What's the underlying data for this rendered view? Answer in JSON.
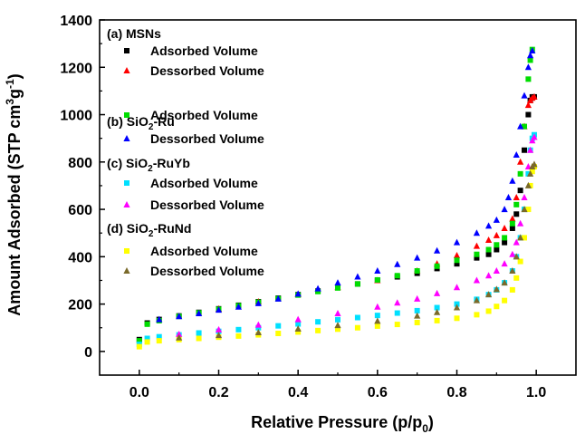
{
  "chart_data": {
    "type": "scatter",
    "xlabel_main": "Relative Pressure (p/p",
    "xlabel_sub": "0",
    "xlabel_end": ")",
    "ylabel_main": "Amount Adsorbed (STP cm",
    "ylabel_sup1": "3",
    "ylabel_mid": "g",
    "ylabel_sup2": "-1",
    "ylabel_end": ")",
    "xlim": [
      -0.1,
      1.1
    ],
    "ylim": [
      -100,
      1400
    ],
    "x_ticks": [
      {
        "value": 0.0,
        "label": "0.0"
      },
      {
        "value": 0.2,
        "label": "0.2"
      },
      {
        "value": 0.4,
        "label": "0.4"
      },
      {
        "value": 0.6,
        "label": "0.6"
      },
      {
        "value": 0.8,
        "label": "0.8"
      },
      {
        "value": 1.0,
        "label": "1.0"
      }
    ],
    "y_ticks": [
      {
        "value": 0,
        "label": "0"
      },
      {
        "value": 200,
        "label": "200"
      },
      {
        "value": 400,
        "label": "400"
      },
      {
        "value": 600,
        "label": "600"
      },
      {
        "value": 800,
        "label": "800"
      },
      {
        "value": 1000,
        "label": "1000"
      },
      {
        "value": 1200,
        "label": "1200"
      },
      {
        "value": 1400,
        "label": "1400"
      }
    ],
    "legend_placement": "top-left",
    "legend_groups": [
      {
        "head": "(a) MSNs",
        "sub": "",
        "tail": ""
      },
      {
        "head": "(b) SiO",
        "sub": "2",
        "tail": "-Ru"
      },
      {
        "head": "(c) SiO",
        "sub": "2",
        "tail": "-RuYb"
      },
      {
        "head": "(d) SiO",
        "sub": "2",
        "tail": "-RuNd"
      }
    ],
    "series": [
      {
        "name": "Adsorbed Volume",
        "group": 0,
        "marker": "square",
        "color": "#000000",
        "x": [
          0.0,
          0.02,
          0.05,
          0.1,
          0.15,
          0.2,
          0.25,
          0.3,
          0.35,
          0.4,
          0.45,
          0.5,
          0.55,
          0.6,
          0.65,
          0.7,
          0.75,
          0.8,
          0.85,
          0.88,
          0.9,
          0.92,
          0.94,
          0.95,
          0.96,
          0.97,
          0.98,
          0.985,
          0.99,
          0.995
        ],
        "y": [
          50,
          120,
          135,
          150,
          165,
          180,
          195,
          210,
          225,
          240,
          255,
          270,
          285,
          300,
          315,
          330,
          350,
          370,
          395,
          410,
          430,
          460,
          520,
          580,
          680,
          850,
          1000,
          1060,
          1075,
          1075
        ]
      },
      {
        "name": "Dessorbed Volume",
        "group": 0,
        "marker": "triangle",
        "color": "#ff0000",
        "x": [
          0.995,
          0.99,
          0.985,
          0.98,
          0.97,
          0.96,
          0.95,
          0.94,
          0.92,
          0.9,
          0.88,
          0.85,
          0.8,
          0.75,
          0.7,
          0.6,
          0.5,
          0.4,
          0.3,
          0.2
        ],
        "y": [
          1075,
          1070,
          1060,
          1040,
          950,
          800,
          650,
          560,
          520,
          490,
          470,
          445,
          405,
          370,
          340,
          300,
          270,
          240,
          210,
          180
        ]
      },
      {
        "name": "Adsorbed Volume",
        "group": 1,
        "marker": "square",
        "color": "#00dd00",
        "x": [
          0.0,
          0.02,
          0.05,
          0.1,
          0.15,
          0.2,
          0.25,
          0.3,
          0.35,
          0.4,
          0.45,
          0.5,
          0.55,
          0.6,
          0.65,
          0.7,
          0.75,
          0.8,
          0.85,
          0.88,
          0.9,
          0.92,
          0.94,
          0.95,
          0.96,
          0.97,
          0.98,
          0.985,
          0.99
        ],
        "y": [
          45,
          115,
          130,
          148,
          163,
          178,
          193,
          208,
          223,
          238,
          253,
          268,
          285,
          302,
          320,
          340,
          360,
          385,
          410,
          430,
          450,
          480,
          540,
          620,
          750,
          950,
          1150,
          1230,
          1275
        ]
      },
      {
        "name": "Dessorbed Volume",
        "group": 1,
        "marker": "triangle",
        "color": "#0000ff",
        "x": [
          0.99,
          0.985,
          0.98,
          0.97,
          0.96,
          0.95,
          0.94,
          0.93,
          0.92,
          0.9,
          0.88,
          0.85,
          0.8,
          0.75,
          0.7,
          0.65,
          0.6,
          0.55,
          0.5,
          0.45,
          0.4,
          0.35,
          0.3,
          0.25,
          0.2,
          0.15,
          0.1,
          0.05
        ],
        "y": [
          1270,
          1250,
          1200,
          1080,
          950,
          830,
          720,
          650,
          600,
          555,
          530,
          500,
          460,
          425,
          395,
          368,
          340,
          315,
          290,
          265,
          243,
          222,
          203,
          188,
          175,
          160,
          148,
          135
        ]
      },
      {
        "name": "Adsorbed Volume",
        "group": 2,
        "marker": "square",
        "color": "#00e0ff",
        "x": [
          0.0,
          0.02,
          0.05,
          0.1,
          0.15,
          0.2,
          0.25,
          0.3,
          0.35,
          0.4,
          0.45,
          0.5,
          0.55,
          0.6,
          0.65,
          0.7,
          0.75,
          0.8,
          0.85,
          0.88,
          0.9,
          0.92,
          0.94,
          0.95,
          0.96,
          0.97,
          0.98,
          0.985,
          0.99,
          0.995
        ],
        "y": [
          30,
          55,
          62,
          70,
          78,
          85,
          92,
          100,
          108,
          116,
          125,
          134,
          143,
          152,
          162,
          172,
          185,
          200,
          220,
          240,
          260,
          290,
          340,
          400,
          480,
          600,
          750,
          850,
          900,
          915
        ]
      },
      {
        "name": "Dessorbed Volume",
        "group": 2,
        "marker": "triangle",
        "color": "#ff00ff",
        "x": [
          0.995,
          0.99,
          0.985,
          0.98,
          0.97,
          0.96,
          0.95,
          0.94,
          0.92,
          0.9,
          0.88,
          0.85,
          0.8,
          0.75,
          0.7,
          0.65,
          0.6,
          0.5,
          0.4,
          0.3,
          0.2,
          0.1
        ],
        "y": [
          905,
          890,
          850,
          780,
          650,
          540,
          460,
          410,
          370,
          340,
          320,
          300,
          270,
          245,
          222,
          205,
          188,
          160,
          135,
          112,
          92,
          72
        ]
      },
      {
        "name": "Adsorbed Volume",
        "group": 3,
        "marker": "square",
        "color": "#ffff00",
        "x": [
          0.0,
          0.02,
          0.05,
          0.1,
          0.15,
          0.2,
          0.25,
          0.3,
          0.35,
          0.4,
          0.45,
          0.5,
          0.55,
          0.6,
          0.65,
          0.7,
          0.75,
          0.8,
          0.85,
          0.88,
          0.9,
          0.92,
          0.94,
          0.95,
          0.96,
          0.97,
          0.98,
          0.985,
          0.99,
          0.995
        ],
        "y": [
          20,
          40,
          45,
          50,
          55,
          60,
          65,
          70,
          76,
          82,
          88,
          94,
          100,
          107,
          114,
          122,
          130,
          140,
          155,
          170,
          190,
          215,
          260,
          310,
          380,
          480,
          600,
          700,
          760,
          780
        ]
      },
      {
        "name": "Dessorbed Volume",
        "group": 3,
        "marker": "triangle",
        "color": "#7a6a2a",
        "x": [
          0.995,
          0.99,
          0.985,
          0.98,
          0.97,
          0.96,
          0.95,
          0.94,
          0.92,
          0.9,
          0.88,
          0.85,
          0.8,
          0.75,
          0.7,
          0.6,
          0.5,
          0.4,
          0.3,
          0.2,
          0.1
        ],
        "y": [
          790,
          780,
          750,
          700,
          600,
          480,
          400,
          340,
          290,
          262,
          240,
          215,
          185,
          165,
          150,
          128,
          110,
          95,
          80,
          68,
          58
        ]
      }
    ]
  }
}
